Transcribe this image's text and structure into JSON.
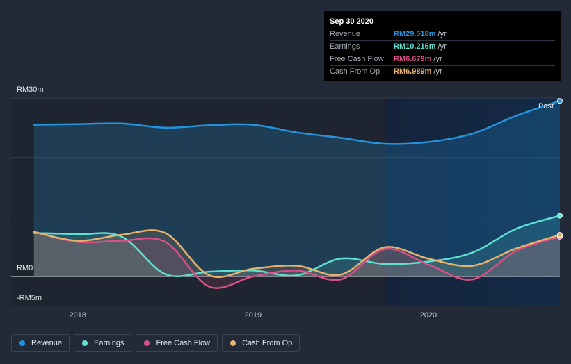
{
  "chart_data": {
    "type": "area",
    "title": "",
    "ylabel": "",
    "xlabel": "",
    "ylim": [
      -5,
      30
    ],
    "y_tick_labels": [
      {
        "value": 30,
        "label": "RM30m"
      },
      {
        "value": 0,
        "label": "RM0"
      },
      {
        "value": -5,
        "label": "-RM5m"
      }
    ],
    "x_tick_labels": [
      {
        "value": 2018.0,
        "label": "2018"
      },
      {
        "value": 2019.0,
        "label": "2019"
      },
      {
        "value": 2020.0,
        "label": "2020"
      }
    ],
    "xlim": [
      2017.62,
      2020.75
    ],
    "forecast_start": 2019.75,
    "past_label": "Past",
    "series": [
      {
        "name": "Revenue",
        "color": "#2394df",
        "x": [
          2017.75,
          2018.0,
          2018.25,
          2018.5,
          2018.75,
          2019.0,
          2019.25,
          2019.5,
          2019.75,
          2020.0,
          2020.25,
          2020.5,
          2020.75
        ],
        "values": [
          25.5,
          25.6,
          25.7,
          25.0,
          25.4,
          25.5,
          24.2,
          23.3,
          22.3,
          22.6,
          24.0,
          27.0,
          29.518
        ]
      },
      {
        "name": "Earnings",
        "color": "#5de1d1",
        "x": [
          2017.75,
          2018.0,
          2018.25,
          2018.5,
          2018.75,
          2019.0,
          2019.25,
          2019.5,
          2019.75,
          2020.0,
          2020.25,
          2020.5,
          2020.75
        ],
        "values": [
          7.3,
          7.1,
          6.7,
          0.4,
          0.8,
          1.0,
          0.2,
          3.0,
          2.1,
          2.5,
          4.0,
          8.0,
          10.216
        ]
      },
      {
        "name": "Free Cash Flow",
        "color": "#d94f87",
        "x": [
          2017.75,
          2018.0,
          2018.25,
          2018.5,
          2018.75,
          2019.0,
          2019.25,
          2019.5,
          2019.75,
          2020.0,
          2020.25,
          2020.5,
          2020.75
        ],
        "values": [
          7.5,
          5.8,
          6.0,
          5.8,
          -1.7,
          0.0,
          1.0,
          -0.5,
          4.6,
          2.0,
          -0.5,
          4.3,
          6.679
        ]
      },
      {
        "name": "Cash From Op",
        "color": "#e9b26b",
        "x": [
          2017.75,
          2018.0,
          2018.25,
          2018.5,
          2018.75,
          2019.0,
          2019.25,
          2019.5,
          2019.75,
          2020.0,
          2020.25,
          2020.5,
          2020.75
        ],
        "values": [
          7.5,
          6.0,
          7.0,
          7.3,
          0.2,
          1.3,
          1.8,
          0.3,
          4.9,
          3.0,
          1.8,
          4.7,
          6.989
        ]
      }
    ]
  },
  "tooltip": {
    "date": "Sep 30 2020",
    "rows": [
      {
        "name": "Revenue",
        "value": "RM29.518m",
        "unit": "/yr",
        "color": "#2394df"
      },
      {
        "name": "Earnings",
        "value": "RM10.216m",
        "unit": "/yr",
        "color": "#5de1d1"
      },
      {
        "name": "Free Cash Flow",
        "value": "RM6.679m",
        "unit": "/yr",
        "color": "#d94f87"
      },
      {
        "name": "Cash From Op",
        "value": "RM6.989m",
        "unit": "/yr",
        "color": "#e9b26b"
      }
    ]
  },
  "legend": [
    {
      "label": "Revenue",
      "color": "#2394df"
    },
    {
      "label": "Earnings",
      "color": "#5de1d1"
    },
    {
      "label": "Free Cash Flow",
      "color": "#d94f87"
    },
    {
      "label": "Cash From Op",
      "color": "#e9b26b"
    }
  ]
}
